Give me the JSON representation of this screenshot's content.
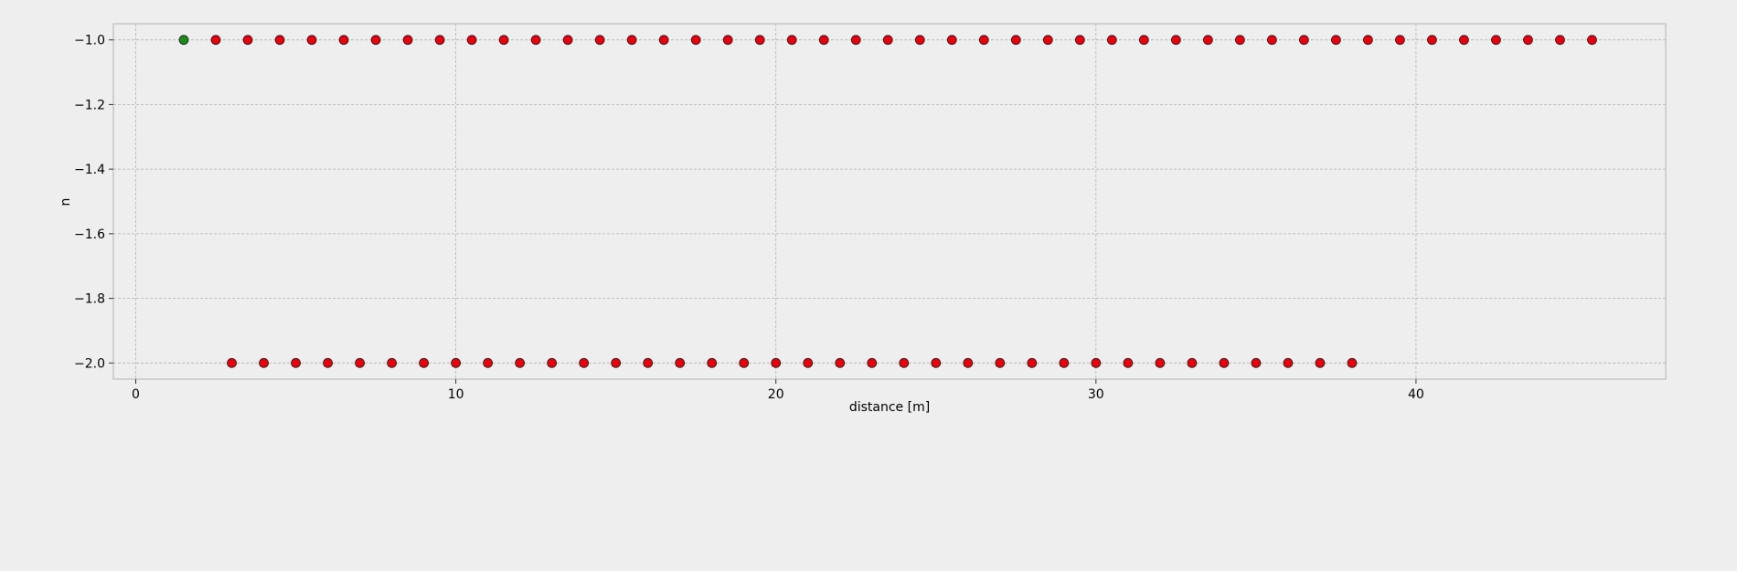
{
  "chart_data": {
    "type": "scatter",
    "title": "",
    "xlabel": "distance [m]",
    "ylabel": "n",
    "xlim": [
      -0.7,
      47.8
    ],
    "ylim": [
      -2.05,
      -0.95
    ],
    "xticks": [
      0,
      10,
      20,
      30,
      40
    ],
    "yticks": [
      -1.0,
      -1.2,
      -1.4,
      -1.6,
      -1.8,
      -2.0
    ],
    "xtick_labels": [
      "0",
      "10",
      "20",
      "30",
      "40"
    ],
    "ytick_labels": [
      "−1.0",
      "−1.2",
      "−1.4",
      "−1.6",
      "−1.8",
      "−2.0"
    ],
    "grid": true,
    "legend": "none",
    "colors": {
      "background": "#eeeeee",
      "plot_bg": "#eeeeee",
      "grid": "#b0b0b0",
      "spine": "#bcbcbc",
      "marker_red": "#e8000b",
      "marker_green": "#1a8a1a",
      "marker_edge": "#222222"
    },
    "series": [
      {
        "color": "#1a8a1a",
        "x": [
          1.5
        ],
        "y": [
          -1.0
        ]
      },
      {
        "color": "#e8000b",
        "x": [
          2.5,
          3.5,
          4.5,
          5.5,
          6.5,
          7.5,
          8.5,
          9.5,
          10.5,
          11.5,
          12.5,
          13.5,
          14.5,
          15.5,
          16.5,
          17.5,
          18.5,
          19.5,
          20.5,
          21.5,
          22.5,
          23.5,
          24.5,
          25.5,
          26.5,
          27.5,
          28.5,
          29.5,
          30.5,
          31.5,
          32.5,
          33.5,
          34.5,
          35.5,
          36.5,
          37.5,
          38.5,
          39.5,
          40.5,
          41.5,
          42.5,
          43.5,
          44.5,
          45.5
        ],
        "y_constant": -1.0
      },
      {
        "color": "#e8000b",
        "x": [
          3,
          4,
          5,
          6,
          7,
          8,
          9,
          10,
          11,
          12,
          13,
          14,
          15,
          16,
          17,
          18,
          19,
          20,
          21,
          22,
          23,
          24,
          25,
          26,
          27,
          28,
          29,
          30,
          31,
          32,
          33,
          34,
          35,
          36,
          37,
          38
        ],
        "y_constant": -2.0
      }
    ]
  }
}
